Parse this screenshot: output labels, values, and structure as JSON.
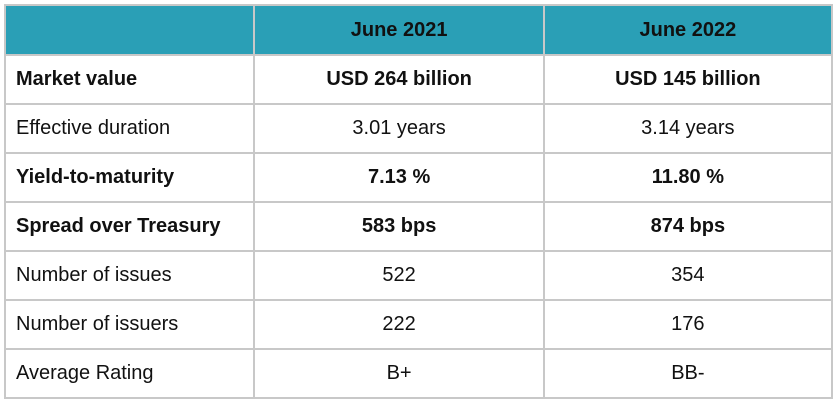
{
  "table": {
    "columns": [
      "June 2021",
      "June 2022"
    ],
    "rows": [
      [
        "Market value",
        "USD 264 billion",
        "USD 145 billion"
      ],
      [
        "Effective duration",
        "3.01 years",
        "3.14 years"
      ],
      [
        "Yield-to-maturity",
        "7.13 %",
        "11.80 %"
      ],
      [
        "Spread over Treasury",
        "583 bps",
        "874 bps"
      ],
      [
        "Number of issues",
        "522",
        "354"
      ],
      [
        "Number of issuers",
        "222",
        "176"
      ],
      [
        "Average Rating",
        "B+",
        "BB-"
      ]
    ]
  }
}
